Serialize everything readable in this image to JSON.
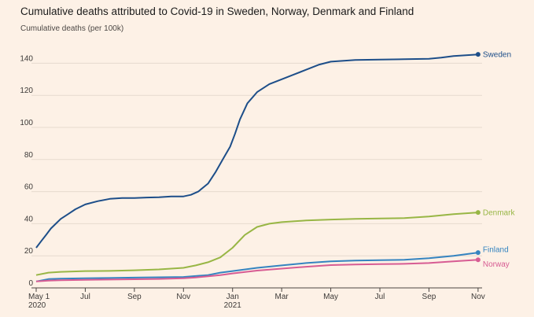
{
  "title": "Cumulative deaths attributed to Covid-19 in Sweden, Norway, Denmark and Finland",
  "subtitle": "Cumulative deaths (per 100k)",
  "chart_data": {
    "type": "line",
    "title": "Cumulative deaths attributed to Covid-19 in Sweden, Norway, Denmark and Finland",
    "ylabel": "Cumulative deaths (per 100k)",
    "xlabel": "",
    "x_range_months": [
      0,
      18.1
    ],
    "ylim": [
      0,
      150
    ],
    "y_ticks": [
      0,
      20,
      40,
      60,
      80,
      100,
      120,
      140
    ],
    "x_ticks": [
      {
        "pos": 0,
        "label": "May 1",
        "sub": "2020"
      },
      {
        "pos": 2,
        "label": "Jul",
        "sub": ""
      },
      {
        "pos": 4,
        "label": "Sep",
        "sub": ""
      },
      {
        "pos": 6,
        "label": "Nov",
        "sub": ""
      },
      {
        "pos": 8,
        "label": "Jan",
        "sub": "2021"
      },
      {
        "pos": 10,
        "label": "Mar",
        "sub": ""
      },
      {
        "pos": 12,
        "label": "May",
        "sub": ""
      },
      {
        "pos": 14,
        "label": "Jul",
        "sub": ""
      },
      {
        "pos": 16,
        "label": "Sep",
        "sub": ""
      },
      {
        "pos": 18,
        "label": "Nov",
        "sub": ""
      }
    ],
    "grid": "horizontal",
    "series": [
      {
        "name": "Sweden",
        "color": "#1d4e89",
        "points": [
          [
            0,
            25
          ],
          [
            0.2,
            29
          ],
          [
            0.4,
            33
          ],
          [
            0.6,
            37
          ],
          [
            0.8,
            40
          ],
          [
            1,
            43
          ],
          [
            1.3,
            46
          ],
          [
            1.6,
            49
          ],
          [
            2,
            52
          ],
          [
            2.5,
            54
          ],
          [
            3,
            55.5
          ],
          [
            3.5,
            56
          ],
          [
            4,
            56
          ],
          [
            4.5,
            56.3
          ],
          [
            5,
            56.5
          ],
          [
            5.5,
            57
          ],
          [
            6,
            57
          ],
          [
            6.3,
            58
          ],
          [
            6.6,
            60
          ],
          [
            7,
            65
          ],
          [
            7.3,
            72
          ],
          [
            7.6,
            80
          ],
          [
            7.9,
            88
          ],
          [
            8.1,
            96
          ],
          [
            8.3,
            105
          ],
          [
            8.6,
            115
          ],
          [
            9,
            122
          ],
          [
            9.5,
            127
          ],
          [
            10,
            130
          ],
          [
            10.5,
            133
          ],
          [
            11,
            136
          ],
          [
            11.5,
            139
          ],
          [
            12,
            141
          ],
          [
            13,
            142
          ],
          [
            14,
            142.3
          ],
          [
            15,
            142.5
          ],
          [
            16,
            142.8
          ],
          [
            16.5,
            143.5
          ],
          [
            17,
            144.5
          ],
          [
            17.5,
            145
          ],
          [
            18,
            145.5
          ]
        ]
      },
      {
        "name": "Denmark",
        "color": "#98b645",
        "points": [
          [
            0,
            8
          ],
          [
            0.5,
            9.5
          ],
          [
            1,
            10
          ],
          [
            2,
            10.5
          ],
          [
            3,
            10.6
          ],
          [
            4,
            11
          ],
          [
            5,
            11.5
          ],
          [
            6,
            12.5
          ],
          [
            6.5,
            14
          ],
          [
            7,
            16
          ],
          [
            7.5,
            19
          ],
          [
            8,
            25
          ],
          [
            8.5,
            33
          ],
          [
            9,
            38
          ],
          [
            9.5,
            40
          ],
          [
            10,
            41
          ],
          [
            11,
            42
          ],
          [
            12,
            42.6
          ],
          [
            13,
            43
          ],
          [
            14,
            43.3
          ],
          [
            15,
            43.5
          ],
          [
            16,
            44.5
          ],
          [
            17,
            46
          ],
          [
            18,
            47
          ]
        ]
      },
      {
        "name": "Finland",
        "color": "#3584c0",
        "points": [
          [
            0,
            4
          ],
          [
            0.5,
            5.5
          ],
          [
            1,
            5.8
          ],
          [
            2,
            6
          ],
          [
            3,
            6.2
          ],
          [
            4,
            6.4
          ],
          [
            5,
            6.6
          ],
          [
            6,
            6.8
          ],
          [
            7,
            8
          ],
          [
            7.5,
            9.5
          ],
          [
            8,
            10.5
          ],
          [
            9,
            12.5
          ],
          [
            10,
            14
          ],
          [
            11,
            15.5
          ],
          [
            12,
            16.5
          ],
          [
            13,
            17
          ],
          [
            14,
            17.3
          ],
          [
            15,
            17.5
          ],
          [
            16,
            18.5
          ],
          [
            17,
            20
          ],
          [
            18,
            22
          ]
        ]
      },
      {
        "name": "Norway",
        "color": "#d75c93",
        "points": [
          [
            0,
            4
          ],
          [
            0.5,
            4.5
          ],
          [
            1,
            4.8
          ],
          [
            2,
            5
          ],
          [
            3,
            5.2
          ],
          [
            4,
            5.4
          ],
          [
            5,
            5.6
          ],
          [
            6,
            6
          ],
          [
            6.5,
            6.5
          ],
          [
            7,
            7.2
          ],
          [
            7.5,
            8
          ],
          [
            8,
            9
          ],
          [
            9,
            10.8
          ],
          [
            10,
            12
          ],
          [
            11,
            13.2
          ],
          [
            12,
            14.2
          ],
          [
            13,
            14.6
          ],
          [
            14,
            14.8
          ],
          [
            15,
            15
          ],
          [
            16,
            15.5
          ],
          [
            17,
            16.5
          ],
          [
            18,
            17.5
          ]
        ]
      }
    ]
  }
}
